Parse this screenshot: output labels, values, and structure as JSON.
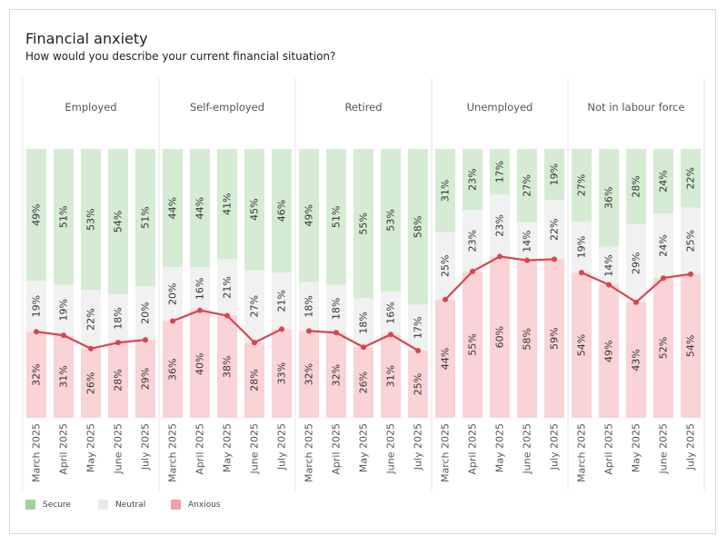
{
  "chart_data": {
    "type": "bar",
    "title": "Financial anxiety",
    "subtitle": "How would you describe your current financial situation?",
    "categories": [
      "March 2025",
      "April 2025",
      "May 2025",
      "June 2025",
      "July 2025"
    ],
    "stacked_percent": true,
    "stack_order_bottom_to_top": [
      "Anxious",
      "Neutral",
      "Secure"
    ],
    "line_series": "Anxious",
    "panels": [
      {
        "name": "Employed",
        "secure": [
          49,
          51,
          53,
          54,
          51
        ],
        "neutral": [
          19,
          19,
          22,
          18,
          20
        ],
        "anxious": [
          32,
          31,
          26,
          28,
          29
        ]
      },
      {
        "name": "Self-employed",
        "secure": [
          44,
          44,
          41,
          45,
          46
        ],
        "neutral": [
          20,
          16,
          21,
          27,
          21
        ],
        "anxious": [
          36,
          40,
          38,
          28,
          33
        ]
      },
      {
        "name": "Retired",
        "secure": [
          49,
          51,
          55,
          53,
          58
        ],
        "neutral": [
          18,
          18,
          18,
          16,
          17
        ],
        "anxious": [
          32,
          32,
          26,
          31,
          25
        ]
      },
      {
        "name": "Unemployed",
        "secure": [
          31,
          23,
          17,
          27,
          19
        ],
        "neutral": [
          25,
          23,
          23,
          14,
          22
        ],
        "anxious": [
          44,
          55,
          60,
          58,
          59
        ]
      },
      {
        "name": "Not in labour force",
        "secure": [
          27,
          36,
          28,
          24,
          22
        ],
        "neutral": [
          19,
          14,
          29,
          24,
          25
        ],
        "anxious": [
          54,
          49,
          43,
          52,
          54
        ]
      }
    ],
    "legend": [
      {
        "name": "Secure",
        "color": "#9fd39a"
      },
      {
        "name": "Neutral",
        "color": "#e8e8e8"
      },
      {
        "name": "Anxious",
        "color": "#f2a0a4"
      }
    ],
    "legend_position": "bottom-left",
    "colors": {
      "secure_bar": "#d5ebd3",
      "neutral_bar": "#f1f1f1",
      "anxious_bar": "#f9d3d5",
      "line": "#d64550"
    }
  }
}
